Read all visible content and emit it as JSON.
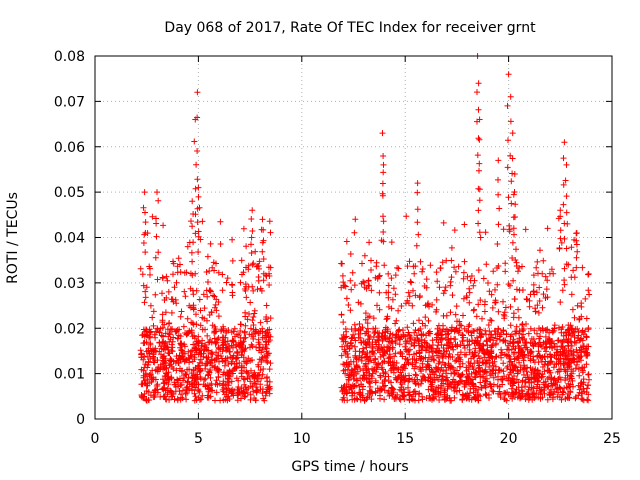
{
  "chart_data": {
    "type": "scatter",
    "title": "Day 068 of 2017, Rate Of TEC Index for receiver grnt",
    "xlabel": "GPS time / hours",
    "ylabel": "ROTI / TECUs",
    "xlim": [
      0,
      25
    ],
    "ylim": [
      0,
      0.08
    ],
    "x_ticks": [
      0,
      5,
      10,
      15,
      20,
      25
    ],
    "y_ticks": [
      0,
      0.01,
      0.02,
      0.03,
      0.04,
      0.05,
      0.06,
      0.07,
      0.08
    ],
    "x_tick_labels": [
      "0",
      "5",
      "10",
      "15",
      "20",
      "25"
    ],
    "y_tick_labels": [
      "0",
      "0.01",
      "0.02",
      "0.03",
      "0.04",
      "0.05",
      "0.06",
      "0.07",
      "0.08"
    ],
    "grid": true,
    "grid_style": "dotted",
    "marker": "+",
    "marker_color": "#ff0000",
    "series": [
      {
        "segments": [
          {
            "x_start": 2.2,
            "x_end": 8.5
          },
          {
            "x_start": 11.9,
            "x_end": 23.9
          }
        ],
        "baseline_range": [
          0.004,
          0.02
        ],
        "typical_max": 0.035,
        "peaks": [
          {
            "x": 2.4,
            "y": 0.05
          },
          {
            "x": 3.0,
            "y": 0.05
          },
          {
            "x": 4.7,
            "y": 0.048
          },
          {
            "x": 4.85,
            "y": 0.066
          },
          {
            "x": 4.95,
            "y": 0.072
          },
          {
            "x": 5.0,
            "y": 0.051
          },
          {
            "x": 7.6,
            "y": 0.046
          },
          {
            "x": 8.1,
            "y": 0.044
          },
          {
            "x": 13.9,
            "y": 0.063
          },
          {
            "x": 13.95,
            "y": 0.056
          },
          {
            "x": 15.6,
            "y": 0.052
          },
          {
            "x": 18.5,
            "y": 0.08
          },
          {
            "x": 18.55,
            "y": 0.074
          },
          {
            "x": 18.6,
            "y": 0.066
          },
          {
            "x": 19.5,
            "y": 0.057
          },
          {
            "x": 20.0,
            "y": 0.076
          },
          {
            "x": 20.1,
            "y": 0.071
          },
          {
            "x": 20.2,
            "y": 0.063
          },
          {
            "x": 20.3,
            "y": 0.054
          },
          {
            "x": 22.5,
            "y": 0.046
          },
          {
            "x": 22.7,
            "y": 0.061
          },
          {
            "x": 22.8,
            "y": 0.056
          },
          {
            "x": 23.3,
            "y": 0.041
          }
        ]
      }
    ]
  }
}
